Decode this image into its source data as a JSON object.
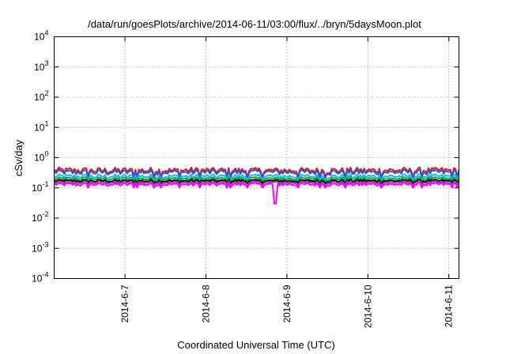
{
  "chart_data": {
    "type": "line",
    "title": "/data/run/goesPlots/archive/2014-06-11/03:00/flux/../bryn/5daysMoon.plot",
    "xlabel": "Coordinated Universal Time (UTC)",
    "ylabel": "cSv/day",
    "y_scale": "log",
    "ylim": [
      0.0001,
      10000
    ],
    "y_ticks": [
      {
        "value": 0.0001,
        "exp": "-4"
      },
      {
        "value": 0.001,
        "exp": "-3"
      },
      {
        "value": 0.01,
        "exp": "-2"
      },
      {
        "value": 0.1,
        "exp": "-1"
      },
      {
        "value": 1,
        "exp": "0"
      },
      {
        "value": 10,
        "exp": "1"
      },
      {
        "value": 100,
        "exp": "2"
      },
      {
        "value": 1000,
        "exp": "3"
      },
      {
        "value": 10000,
        "exp": "4"
      }
    ],
    "xlim": [
      "2014-06-06T03:00",
      "2014-06-11T03:00"
    ],
    "x_ticks": [
      {
        "date": "2014-06-07T00:00",
        "label": "2014-6-7"
      },
      {
        "date": "2014-06-08T00:00",
        "label": "2014-6-8"
      },
      {
        "date": "2014-06-09T00:00",
        "label": "2014-6-9"
      },
      {
        "date": "2014-06-10T00:00",
        "label": "2014-6-10"
      },
      {
        "date": "2014-06-11T00:00",
        "label": "2014-6-11"
      }
    ],
    "grid": true,
    "series": [
      {
        "color": "#e41a1c",
        "level": 0.38,
        "noise": 0.12
      },
      {
        "color": "#3050e0",
        "level": 0.33,
        "noise": 0.11
      },
      {
        "color": "#00c8d8",
        "level": 0.24,
        "noise": 0.09
      },
      {
        "color": "#20a020",
        "level": 0.2,
        "noise": 0.07
      },
      {
        "color": "#000000",
        "level": 0.17,
        "noise": 0.06
      },
      {
        "color": "#a040c0",
        "level": 0.15,
        "noise": 0.06
      },
      {
        "color": "#ff00ff",
        "level": 0.13,
        "noise": 0.07,
        "dip": {
          "date": "2014-06-08T20:30",
          "value": 0.03
        }
      }
    ]
  }
}
